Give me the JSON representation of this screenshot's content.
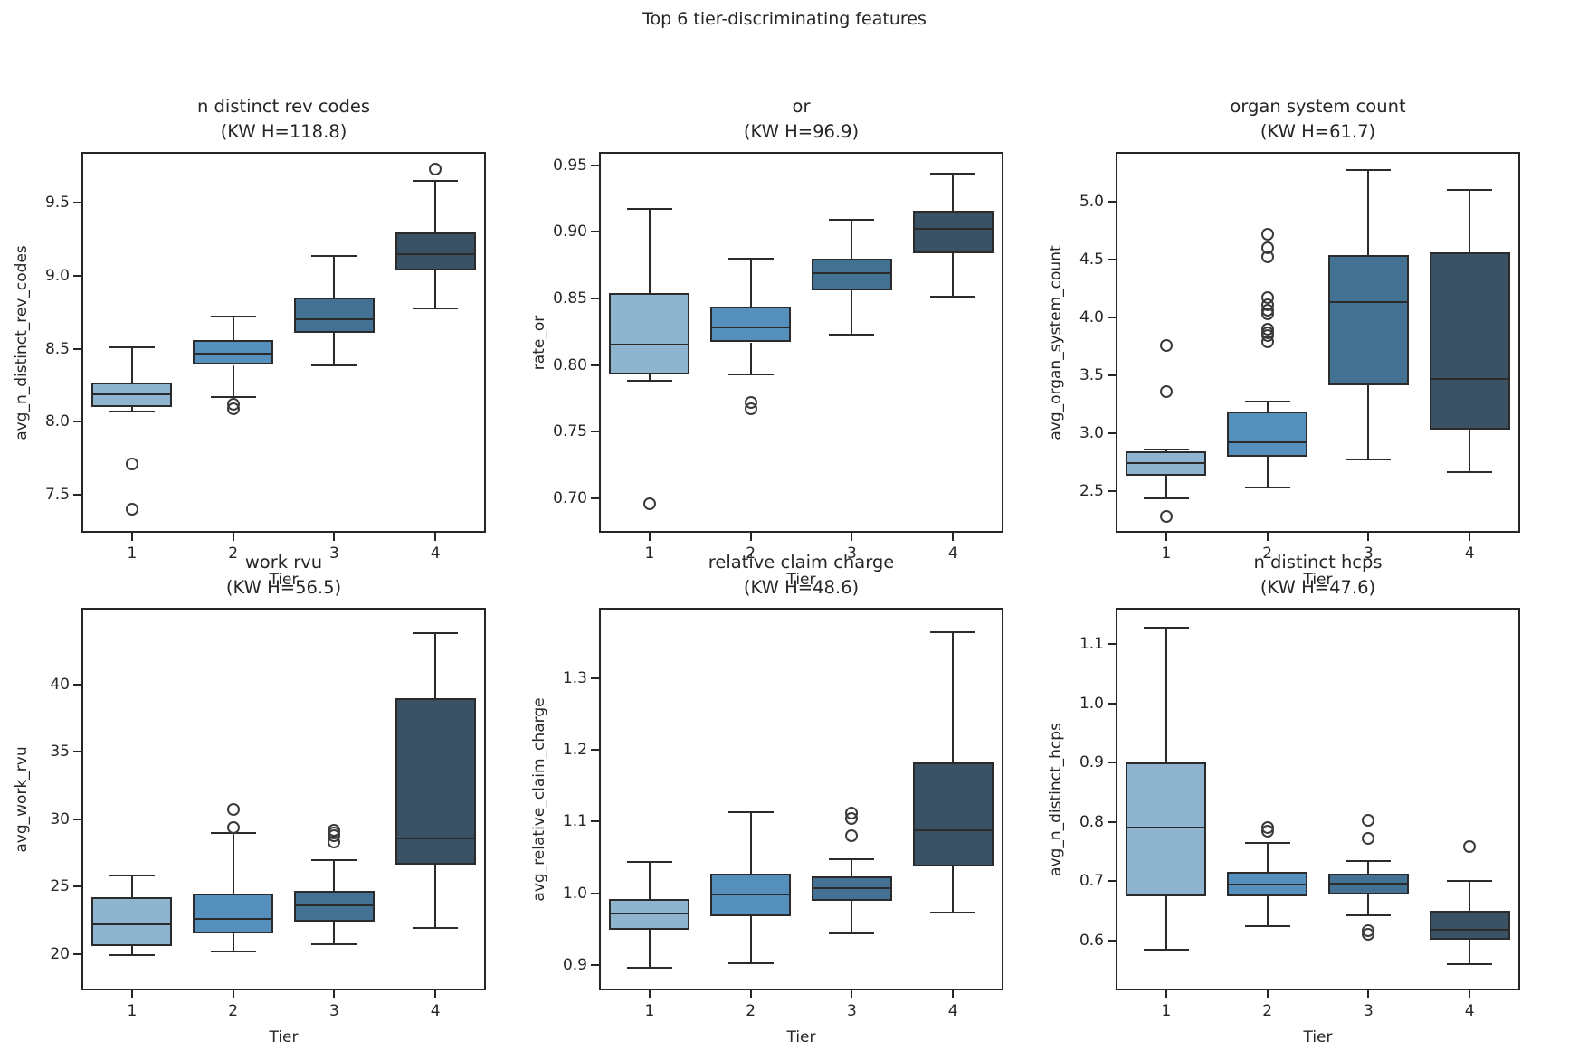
{
  "suptitle": "Top 6 tier-discriminating features",
  "colors": {
    "box_fills": [
      "#8fb4cf",
      "#5490bb",
      "#427191",
      "#3a5163"
    ],
    "edge": "#2b2b2b",
    "text": "#262626"
  },
  "chart_data": [
    {
      "type": "box",
      "title": "n distinct rev codes",
      "subtitle": "(KW H=118.8)",
      "ylabel": "avg_n_distinct_rev_codes",
      "xlabel": "Tier",
      "categories": [
        "1",
        "2",
        "3",
        "4"
      ],
      "ylim": [
        7.24,
        9.85
      ],
      "ytick_values": [
        7.5,
        8.0,
        8.5,
        9.0,
        9.5
      ],
      "ytick_labels": [
        "7.5",
        "8.0",
        "8.5",
        "9.0",
        "9.5"
      ],
      "boxes": [
        {
          "whislo": 8.07,
          "q1": 8.1,
          "med": 8.19,
          "q3": 8.27,
          "whishi": 8.51,
          "outliers": [
            7.71,
            7.4
          ]
        },
        {
          "whislo": 8.17,
          "q1": 8.39,
          "med": 8.47,
          "q3": 8.56,
          "whishi": 8.72,
          "outliers": [
            8.12,
            8.09
          ]
        },
        {
          "whislo": 8.39,
          "q1": 8.61,
          "med": 8.7,
          "q3": 8.85,
          "whishi": 9.14,
          "outliers": []
        },
        {
          "whislo": 8.78,
          "q1": 9.04,
          "med": 9.15,
          "q3": 9.3,
          "whishi": 9.65,
          "outliers": [
            9.73
          ]
        }
      ]
    },
    {
      "type": "box",
      "title": "or",
      "subtitle": "(KW H=96.9)",
      "ylabel": "rate_or",
      "xlabel": "Tier",
      "categories": [
        "1",
        "2",
        "3",
        "4"
      ],
      "ylim": [
        0.674,
        0.96
      ],
      "ytick_values": [
        0.7,
        0.75,
        0.8,
        0.85,
        0.9,
        0.95
      ],
      "ytick_labels": [
        "0.70",
        "0.75",
        "0.80",
        "0.85",
        "0.90",
        "0.95"
      ],
      "boxes": [
        {
          "whislo": 0.788,
          "q1": 0.793,
          "med": 0.815,
          "q3": 0.854,
          "whishi": 0.917,
          "outliers": [
            0.696
          ]
        },
        {
          "whislo": 0.793,
          "q1": 0.817,
          "med": 0.828,
          "q3": 0.844,
          "whishi": 0.88,
          "outliers": [
            0.772,
            0.767
          ]
        },
        {
          "whislo": 0.823,
          "q1": 0.856,
          "med": 0.869,
          "q3": 0.88,
          "whishi": 0.909,
          "outliers": []
        },
        {
          "whislo": 0.851,
          "q1": 0.884,
          "med": 0.902,
          "q3": 0.916,
          "whishi": 0.944,
          "outliers": []
        }
      ]
    },
    {
      "type": "box",
      "title": "organ system count",
      "subtitle": "(KW H=61.7)",
      "ylabel": "avg_organ_system_count",
      "xlabel": "Tier",
      "categories": [
        "1",
        "2",
        "3",
        "4"
      ],
      "ylim": [
        2.14,
        5.43
      ],
      "ytick_values": [
        2.5,
        3.0,
        3.5,
        4.0,
        4.5,
        5.0
      ],
      "ytick_labels": [
        "2.5",
        "3.0",
        "3.5",
        "4.0",
        "4.5",
        "5.0"
      ],
      "boxes": [
        {
          "whislo": 2.44,
          "q1": 2.63,
          "med": 2.74,
          "q3": 2.84,
          "whishi": 2.86,
          "outliers": [
            3.76,
            3.36,
            2.28
          ]
        },
        {
          "whislo": 2.53,
          "q1": 2.8,
          "med": 2.92,
          "q3": 3.19,
          "whishi": 3.27,
          "outliers": [
            4.72,
            4.6,
            4.52,
            4.17,
            4.11,
            4.06,
            4.03,
            3.9,
            3.87,
            3.84,
            3.79
          ]
        },
        {
          "whislo": 2.77,
          "q1": 3.41,
          "med": 4.13,
          "q3": 4.54,
          "whishi": 5.27,
          "outliers": []
        },
        {
          "whislo": 2.66,
          "q1": 3.03,
          "med": 3.47,
          "q3": 4.56,
          "whishi": 5.1,
          "outliers": []
        }
      ]
    },
    {
      "type": "box",
      "title": "work rvu",
      "subtitle": "(KW H=56.5)",
      "ylabel": "avg_work_rvu",
      "xlabel": "Tier",
      "categories": [
        "1",
        "2",
        "3",
        "4"
      ],
      "ylim": [
        17.3,
        45.7
      ],
      "ytick_values": [
        20,
        25,
        30,
        35,
        40
      ],
      "ytick_labels": [
        "20",
        "25",
        "30",
        "35",
        "40"
      ],
      "boxes": [
        {
          "whislo": 19.9,
          "q1": 20.6,
          "med": 22.2,
          "q3": 24.2,
          "whishi": 25.8,
          "outliers": []
        },
        {
          "whislo": 20.2,
          "q1": 21.5,
          "med": 22.6,
          "q3": 24.5,
          "whishi": 29.0,
          "outliers": [
            30.7,
            29.4
          ]
        },
        {
          "whislo": 20.7,
          "q1": 22.4,
          "med": 23.6,
          "q3": 24.7,
          "whishi": 27.0,
          "outliers": [
            29.2,
            29.0,
            28.8,
            28.3
          ]
        },
        {
          "whislo": 21.9,
          "q1": 26.6,
          "med": 28.6,
          "q3": 39.0,
          "whishi": 43.8,
          "outliers": []
        }
      ]
    },
    {
      "type": "box",
      "title": "relative claim charge",
      "subtitle": "(KW H=48.6)",
      "ylabel": "avg_relative_claim_charge",
      "xlabel": "Tier",
      "categories": [
        "1",
        "2",
        "3",
        "4"
      ],
      "ylim": [
        0.865,
        1.398
      ],
      "ytick_values": [
        0.9,
        1.0,
        1.1,
        1.2,
        1.3
      ],
      "ytick_labels": [
        "0.9",
        "1.0",
        "1.1",
        "1.2",
        "1.3"
      ],
      "boxes": [
        {
          "whislo": 0.896,
          "q1": 0.95,
          "med": 0.972,
          "q3": 0.992,
          "whishi": 1.044,
          "outliers": []
        },
        {
          "whislo": 0.903,
          "q1": 0.968,
          "med": 0.998,
          "q3": 1.028,
          "whishi": 1.113,
          "outliers": []
        },
        {
          "whislo": 0.944,
          "q1": 0.99,
          "med": 1.007,
          "q3": 1.024,
          "whishi": 1.048,
          "outliers": [
            1.112,
            1.105,
            1.08
          ]
        },
        {
          "whislo": 0.973,
          "q1": 1.038,
          "med": 1.088,
          "q3": 1.183,
          "whishi": 1.364,
          "outliers": []
        }
      ]
    },
    {
      "type": "box",
      "title": "n distinct hcps",
      "subtitle": "(KW H=47.6)",
      "ylabel": "avg_n_distinct_hcps",
      "xlabel": "Tier",
      "categories": [
        "1",
        "2",
        "3",
        "4"
      ],
      "ylim": [
        0.516,
        1.161
      ],
      "ytick_values": [
        0.6,
        0.7,
        0.8,
        0.9,
        1.0,
        1.1
      ],
      "ytick_labels": [
        "0.6",
        "0.7",
        "0.8",
        "0.9",
        "1.0",
        "1.1"
      ],
      "boxes": [
        {
          "whislo": 0.585,
          "q1": 0.675,
          "med": 0.79,
          "q3": 0.901,
          "whishi": 1.128,
          "outliers": []
        },
        {
          "whislo": 0.625,
          "q1": 0.675,
          "med": 0.694,
          "q3": 0.716,
          "whishi": 0.765,
          "outliers": [
            0.79,
            0.785
          ]
        },
        {
          "whislo": 0.643,
          "q1": 0.678,
          "med": 0.696,
          "q3": 0.712,
          "whishi": 0.734,
          "outliers": [
            0.803,
            0.772,
            0.617,
            0.61
          ]
        },
        {
          "whislo": 0.56,
          "q1": 0.601,
          "med": 0.618,
          "q3": 0.65,
          "whishi": 0.7,
          "outliers": [
            0.758
          ]
        }
      ]
    }
  ]
}
